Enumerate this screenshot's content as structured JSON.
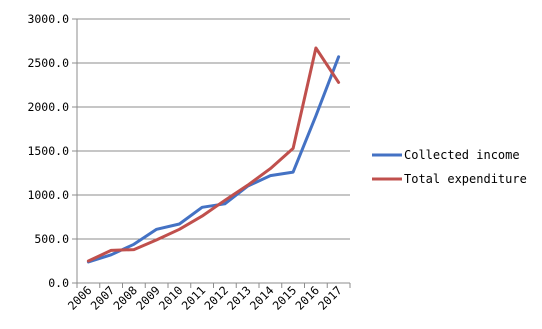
{
  "chart_data": {
    "type": "line",
    "title": "",
    "xlabel": "",
    "ylabel": "",
    "categories": [
      "2006",
      "2007",
      "2008",
      "2009",
      "2010",
      "2011",
      "2012",
      "2013",
      "2014",
      "2015",
      "2016",
      "2017"
    ],
    "ylim": [
      0,
      3000
    ],
    "yticks": [
      "0.0",
      "500.0",
      "1000.0",
      "1500.0",
      "2000.0",
      "2500.0",
      "3000.0"
    ],
    "grid": "horizontal",
    "legend_position": "right",
    "series": [
      {
        "name": "Collected income",
        "color": "#4472C4",
        "values": [
          240,
          320,
          440,
          610,
          670,
          860,
          900,
          1100,
          1220,
          1260,
          1900,
          2570
        ]
      },
      {
        "name": "Total expenditure",
        "color": "#C0504D",
        "values": [
          250,
          370,
          380,
          490,
          610,
          760,
          940,
          1110,
          1300,
          1530,
          2670,
          2280
        ]
      }
    ]
  }
}
